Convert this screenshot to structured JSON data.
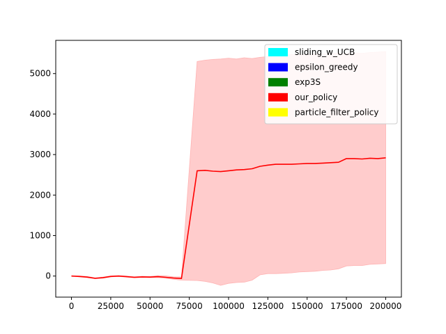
{
  "chart_data": {
    "type": "line",
    "xlim": [
      -10000,
      210000
    ],
    "ylim": [
      -520,
      5820
    ],
    "xticks": [
      0,
      25000,
      50000,
      75000,
      100000,
      125000,
      150000,
      175000,
      200000
    ],
    "yticks": [
      0,
      1000,
      2000,
      3000,
      4000,
      5000
    ],
    "grid": false,
    "legend_position": "upper right",
    "legend": [
      {
        "name": "sliding_w_UCB",
        "color": "#00ffff"
      },
      {
        "name": "epsilon_greedy",
        "color": "#0000ff"
      },
      {
        "name": "exp3S",
        "color": "#008000"
      },
      {
        "name": "our_policy",
        "color": "#ff0000"
      },
      {
        "name": "particle_filter_policy",
        "color": "#ffff00"
      }
    ],
    "series": [
      {
        "name": "our_policy",
        "color": "#ff0000",
        "band_color": "#ffcccc",
        "x": [
          0,
          5000,
          10000,
          15000,
          20000,
          25000,
          30000,
          35000,
          40000,
          45000,
          50000,
          55000,
          60000,
          65000,
          70000,
          80000,
          85000,
          90000,
          95000,
          100000,
          105000,
          110000,
          115000,
          120000,
          125000,
          130000,
          135000,
          140000,
          145000,
          150000,
          155000,
          160000,
          165000,
          170000,
          175000,
          180000,
          185000,
          190000,
          195000,
          200000
        ],
        "mean": [
          0,
          -10,
          -25,
          -55,
          -40,
          -10,
          0,
          -15,
          -30,
          -20,
          -25,
          -15,
          -30,
          -50,
          -60,
          2600,
          2610,
          2590,
          2580,
          2600,
          2620,
          2630,
          2650,
          2710,
          2740,
          2760,
          2760,
          2760,
          2770,
          2780,
          2780,
          2790,
          2800,
          2810,
          2900,
          2900,
          2890,
          2910,
          2900,
          2920
        ],
        "lower": [
          0,
          -20,
          -40,
          -65,
          -55,
          -20,
          -10,
          -25,
          -45,
          -35,
          -40,
          -35,
          -55,
          -80,
          -100,
          -110,
          -130,
          -170,
          -230,
          -180,
          -160,
          -150,
          -100,
          30,
          60,
          60,
          70,
          80,
          100,
          110,
          120,
          140,
          150,
          180,
          250,
          260,
          260,
          290,
          300,
          310
        ],
        "upper": [
          0,
          5,
          -10,
          -45,
          -25,
          5,
          10,
          0,
          -15,
          -5,
          -10,
          10,
          5,
          -20,
          -20,
          5300,
          5330,
          5350,
          5360,
          5380,
          5360,
          5390,
          5370,
          5400,
          5420,
          5440,
          5450,
          5470,
          5460,
          5470,
          5480,
          5480,
          5490,
          5500,
          5490,
          5510,
          5500,
          5520,
          5530,
          5540
        ]
      }
    ]
  }
}
